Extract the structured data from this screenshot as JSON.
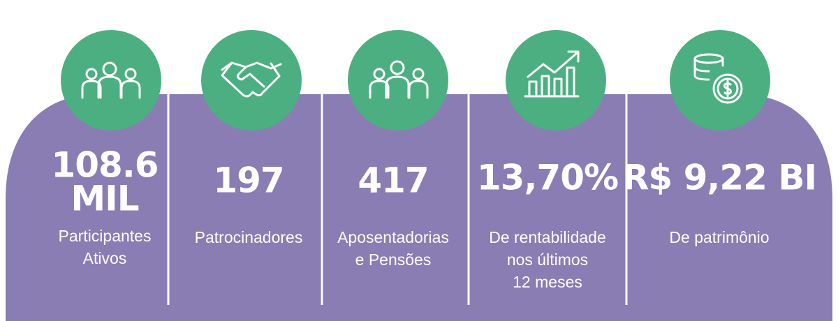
{
  "stats": [
    {
      "value": [
        "108.6",
        "MIL"
      ],
      "label": [
        "Participantes",
        "Ativos"
      ]
    },
    {
      "value": [
        "197"
      ],
      "label": [
        "Patrocinadores"
      ]
    },
    {
      "value": [
        "417"
      ],
      "label": [
        "Aposentadorias",
        "e Pensões"
      ]
    },
    {
      "value": [
        "13,70%"
      ],
      "label": [
        "De rentabilidade",
        "nos últimos",
        "12 meses"
      ]
    },
    {
      "value": [
        "R$ 9,22 BI"
      ],
      "label": [
        "De patrimônio"
      ]
    }
  ]
}
